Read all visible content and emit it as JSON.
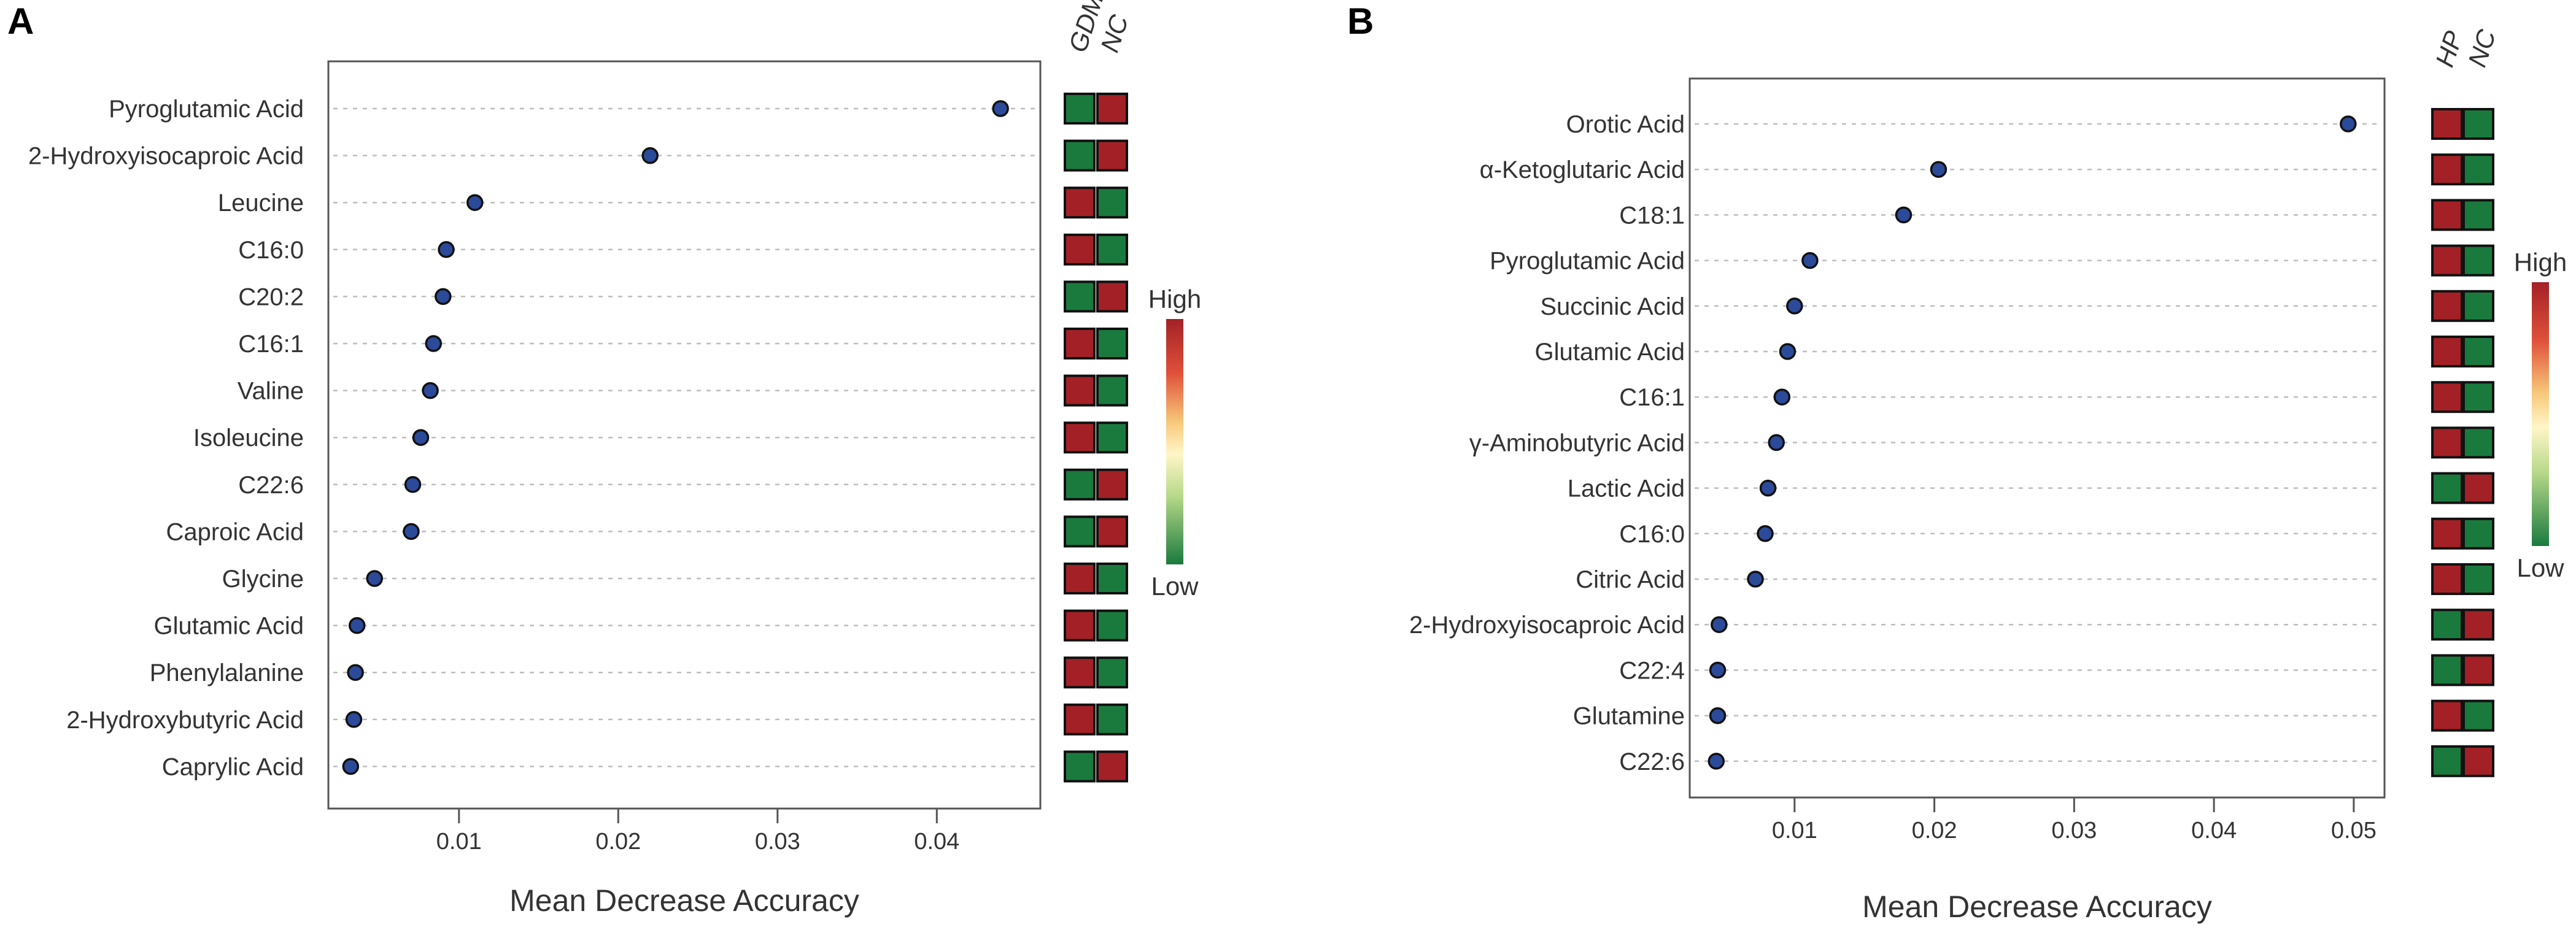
{
  "chart_data": [
    {
      "panel_label": "A",
      "type": "scatter",
      "subtype": "variable-importance-dotplot",
      "xlabel": "Mean Decrease Accuracy",
      "xlim": [
        0.0018,
        0.0465
      ],
      "xticks": [
        0.01,
        0.02,
        0.03,
        0.04
      ],
      "xtick_labels": [
        "0.01",
        "0.02",
        "0.03",
        "0.04"
      ],
      "grid": "horizontal dotted",
      "heatmap_columns": [
        "GDM",
        "NC"
      ],
      "legend": {
        "title_high": "High",
        "title_low": "Low",
        "placement": "right"
      },
      "colors": {
        "high": "#a32126",
        "low": "#1a7a3e",
        "point": "#2b4a9a",
        "mid": "#fff6c8"
      },
      "categories": [
        "Pyroglutamic Acid",
        "2-Hydroxyisocaproic Acid",
        "Leucine",
        "C16:0",
        "C20:2",
        "C16:1",
        "Valine",
        "Isoleucine",
        "C22:6",
        "Caproic Acid",
        "Glycine",
        "Glutamic Acid",
        "Phenylalanine",
        "2-Hydroxybutyric Acid",
        "Caprylic Acid"
      ],
      "values": [
        0.044,
        0.022,
        0.011,
        0.0092,
        0.009,
        0.0084,
        0.0082,
        0.0076,
        0.0071,
        0.007,
        0.0047,
        0.0036,
        0.0035,
        0.0034,
        0.0032
      ],
      "heat": [
        [
          "low",
          "high"
        ],
        [
          "low",
          "high"
        ],
        [
          "high",
          "low"
        ],
        [
          "high",
          "low"
        ],
        [
          "low",
          "high"
        ],
        [
          "high",
          "low"
        ],
        [
          "high",
          "low"
        ],
        [
          "high",
          "low"
        ],
        [
          "low",
          "high"
        ],
        [
          "low",
          "high"
        ],
        [
          "high",
          "low"
        ],
        [
          "high",
          "low"
        ],
        [
          "high",
          "low"
        ],
        [
          "high",
          "low"
        ],
        [
          "low",
          "high"
        ]
      ]
    },
    {
      "panel_label": "B",
      "type": "scatter",
      "subtype": "variable-importance-dotplot",
      "xlabel": "Mean Decrease Accuracy",
      "xlim": [
        0.0025,
        0.0522
      ],
      "xticks": [
        0.01,
        0.02,
        0.03,
        0.04,
        0.05
      ],
      "xtick_labels": [
        "0.01",
        "0.02",
        "0.03",
        "0.04",
        "0.05"
      ],
      "grid": "horizontal dotted",
      "heatmap_columns": [
        "HP",
        "NC"
      ],
      "legend": {
        "title_high": "High",
        "title_low": "Low",
        "placement": "right"
      },
      "colors": {
        "high": "#a32126",
        "low": "#1a7a3e",
        "point": "#2b4a9a",
        "mid": "#fff6c8"
      },
      "categories": [
        "Orotic Acid",
        "α-Ketoglutaric Acid",
        "C18:1",
        "Pyroglutamic Acid",
        "Succinic Acid",
        "Glutamic Acid",
        "C16:1",
        "γ-Aminobutyric Acid",
        "Lactic Acid",
        "C16:0",
        "Citric Acid",
        "2-Hydroxyisocaproic Acid",
        "C22:4",
        "Glutamine",
        "C22:6"
      ],
      "values": [
        0.0496,
        0.0203,
        0.0178,
        0.0111,
        0.01,
        0.0095,
        0.0091,
        0.0087,
        0.0081,
        0.0079,
        0.0072,
        0.0046,
        0.0045,
        0.0045,
        0.0044
      ],
      "heat": [
        [
          "high",
          "low"
        ],
        [
          "high",
          "low"
        ],
        [
          "high",
          "low"
        ],
        [
          "high",
          "low"
        ],
        [
          "high",
          "low"
        ],
        [
          "high",
          "low"
        ],
        [
          "high",
          "low"
        ],
        [
          "high",
          "low"
        ],
        [
          "low",
          "high"
        ],
        [
          "high",
          "low"
        ],
        [
          "high",
          "low"
        ],
        [
          "low",
          "high"
        ],
        [
          "low",
          "high"
        ],
        [
          "high",
          "low"
        ],
        [
          "low",
          "high"
        ]
      ]
    }
  ]
}
